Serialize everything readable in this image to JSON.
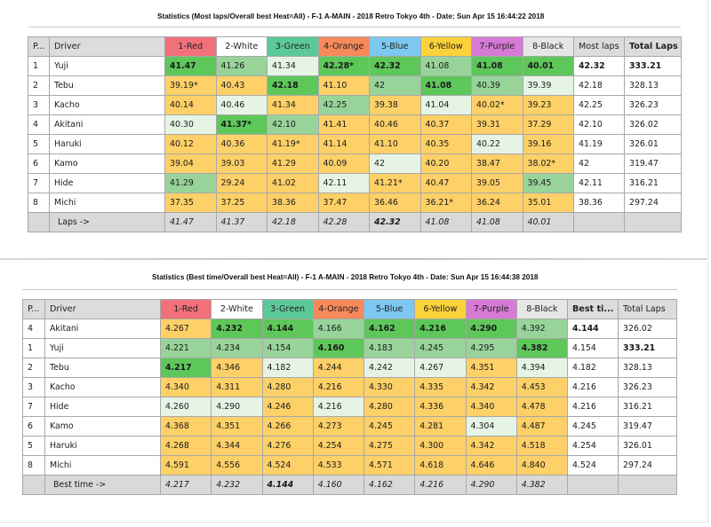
{
  "colors": {
    "best": "#5ec75a",
    "good": "#98d49a",
    "near": "#e6f4e6",
    "other": "#fdd068",
    "header_gray": "#dcdcdc",
    "lane_1_red": "#f2707a",
    "lane_2_white": "#ffffff",
    "lane_3_green": "#5cc99a",
    "lane_4_orange": "#f7895a",
    "lane_5_blue": "#7cc8f0",
    "lane_6_yellow": "#fcd23a",
    "lane_7_purple": "#d67ad6",
    "lane_8_black": "#e6e6e6"
  },
  "table1": {
    "title": "Statistics (Most laps/Overall best Heat=All) - F-1 A-MAIN - 2018 Retro Tokyo 4th - Date: Sun Apr 15 16:44:22 2018",
    "headers": {
      "pos": "P...",
      "driver": "Driver",
      "lanes": [
        "1-Red",
        "2-White",
        "3-Green",
        "4-Orange",
        "5-Blue",
        "6-Yellow",
        "7-Purple",
        "8-Black"
      ],
      "stat": "Most laps",
      "total": "Total Laps"
    },
    "rows": [
      {
        "pos": "1",
        "driver": "Yuji",
        "cells": [
          "41.47",
          "41.26",
          "41.34",
          "42.28*",
          "42.32",
          "41.08",
          "41.08",
          "40.01"
        ],
        "shade": [
          "G",
          "g",
          "l",
          "G",
          "G",
          "g",
          "G",
          "G"
        ],
        "bold": [
          true,
          false,
          false,
          true,
          true,
          false,
          true,
          true
        ],
        "stat": "42.32",
        "total": "333.21",
        "stat_bold": true,
        "total_bold": true
      },
      {
        "pos": "2",
        "driver": "Tebu",
        "cells": [
          "39.19*",
          "40.43",
          "42.18",
          "41.10",
          "42",
          "41.08",
          "40.39",
          "39.39"
        ],
        "shade": [
          "y",
          "y",
          "G",
          "y",
          "g",
          "G",
          "g",
          "l"
        ],
        "bold": [
          false,
          false,
          true,
          false,
          false,
          true,
          false,
          false
        ],
        "stat": "42.18",
        "total": "328.13",
        "stat_bold": false,
        "total_bold": false
      },
      {
        "pos": "3",
        "driver": "Kacho",
        "cells": [
          "40.14",
          "40.46",
          "41.34",
          "42.25",
          "39.38",
          "41.04",
          "40.02*",
          "39.23"
        ],
        "shade": [
          "y",
          "l",
          "y",
          "g",
          "y",
          "l",
          "y",
          "y"
        ],
        "bold": [
          false,
          false,
          false,
          false,
          false,
          false,
          false,
          false
        ],
        "stat": "42.25",
        "total": "326.23",
        "stat_bold": false,
        "total_bold": false
      },
      {
        "pos": "4",
        "driver": "Akitani",
        "cells": [
          "40.30",
          "41.37*",
          "42.10",
          "41.41",
          "40.46",
          "40.37",
          "39.31",
          "37.29"
        ],
        "shade": [
          "l",
          "G",
          "g",
          "y",
          "y",
          "y",
          "y",
          "y"
        ],
        "bold": [
          false,
          true,
          false,
          false,
          false,
          false,
          false,
          false
        ],
        "stat": "42.10",
        "total": "326.02",
        "stat_bold": false,
        "total_bold": false
      },
      {
        "pos": "5",
        "driver": "Haruki",
        "cells": [
          "40.12",
          "40.36",
          "41.19*",
          "41.14",
          "41.10",
          "40.35",
          "40.22",
          "39.16"
        ],
        "shade": [
          "y",
          "y",
          "y",
          "y",
          "y",
          "y",
          "l",
          "y"
        ],
        "bold": [
          false,
          false,
          false,
          false,
          false,
          false,
          false,
          false
        ],
        "stat": "41.19",
        "total": "326.01",
        "stat_bold": false,
        "total_bold": false
      },
      {
        "pos": "6",
        "driver": "Kamo",
        "cells": [
          "39.04",
          "39.03",
          "41.29",
          "40.09",
          "42",
          "40.20",
          "38.47",
          "38.02*"
        ],
        "shade": [
          "y",
          "y",
          "y",
          "y",
          "l",
          "y",
          "y",
          "y"
        ],
        "bold": [
          false,
          false,
          false,
          false,
          false,
          false,
          false,
          false
        ],
        "stat": "42",
        "total": "319.47",
        "stat_bold": false,
        "total_bold": false
      },
      {
        "pos": "7",
        "driver": "Hide",
        "cells": [
          "41.29",
          "29.24",
          "41.02",
          "42.11",
          "41.21*",
          "40.47",
          "39.05",
          "39.45"
        ],
        "shade": [
          "g",
          "y",
          "y",
          "l",
          "y",
          "y",
          "y",
          "g"
        ],
        "bold": [
          false,
          false,
          false,
          false,
          false,
          false,
          false,
          false
        ],
        "stat": "42.11",
        "total": "316.21",
        "stat_bold": false,
        "total_bold": false
      },
      {
        "pos": "8",
        "driver": "Michi",
        "cells": [
          "37.35",
          "37.25",
          "38.36",
          "37.47",
          "36.46",
          "36.21*",
          "36.24",
          "35.01"
        ],
        "shade": [
          "y",
          "y",
          "y",
          "y",
          "y",
          "y",
          "y",
          "y"
        ],
        "bold": [
          false,
          false,
          false,
          false,
          false,
          false,
          false,
          false
        ],
        "stat": "38.36",
        "total": "297.24",
        "stat_bold": false,
        "total_bold": false
      }
    ],
    "footer": {
      "label": "Laps ->",
      "cells": [
        "41.47",
        "41.37",
        "42.18",
        "42.28",
        "42.32",
        "41.08",
        "41.08",
        "40.01"
      ],
      "bold": [
        false,
        false,
        false,
        false,
        true,
        false,
        false,
        false
      ]
    }
  },
  "table2": {
    "title": "Statistics (Best time/Overall best Heat=All) - F-1 A-MAIN - 2018 Retro Tokyo 4th - Date: Sun Apr 15 16:44:38 2018",
    "headers": {
      "pos": "P...",
      "driver": "Driver",
      "lanes": [
        "1-Red",
        "2-White",
        "3-Green",
        "4-Orange",
        "5-Blue",
        "6-Yellow",
        "7-Purple",
        "8-Black"
      ],
      "stat": "Best ti...",
      "total": "Total Laps"
    },
    "rows": [
      {
        "pos": "4",
        "driver": "Akitani",
        "cells": [
          "4.267",
          "4.232",
          "4.144",
          "4.166",
          "4.162",
          "4.216",
          "4.290",
          "4.392"
        ],
        "shade": [
          "y",
          "G",
          "G",
          "g",
          "G",
          "G",
          "G",
          "g"
        ],
        "bold": [
          false,
          true,
          true,
          false,
          true,
          true,
          true,
          false
        ],
        "stat": "4.144",
        "total": "326.02",
        "stat_bold": true,
        "total_bold": false
      },
      {
        "pos": "1",
        "driver": "Yuji",
        "cells": [
          "4.221",
          "4.234",
          "4.154",
          "4.160",
          "4.183",
          "4.245",
          "4.295",
          "4.382"
        ],
        "shade": [
          "g",
          "g",
          "g",
          "G",
          "g",
          "g",
          "g",
          "G"
        ],
        "bold": [
          false,
          false,
          false,
          true,
          false,
          false,
          false,
          true
        ],
        "stat": "4.154",
        "total": "333.21",
        "stat_bold": false,
        "total_bold": true
      },
      {
        "pos": "2",
        "driver": "Tebu",
        "cells": [
          "4.217",
          "4.346",
          "4.182",
          "4.244",
          "4.242",
          "4.267",
          "4.351",
          "4.394"
        ],
        "shade": [
          "G",
          "y",
          "l",
          "y",
          "l",
          "l",
          "y",
          "l"
        ],
        "bold": [
          true,
          false,
          false,
          false,
          false,
          false,
          false,
          false
        ],
        "stat": "4.182",
        "total": "328.13",
        "stat_bold": false,
        "total_bold": false
      },
      {
        "pos": "3",
        "driver": "Kacho",
        "cells": [
          "4.340",
          "4.311",
          "4.280",
          "4.216",
          "4.330",
          "4.335",
          "4.342",
          "4.453"
        ],
        "shade": [
          "y",
          "y",
          "y",
          "y",
          "y",
          "y",
          "y",
          "y"
        ],
        "bold": [
          false,
          false,
          false,
          false,
          false,
          false,
          false,
          false
        ],
        "stat": "4.216",
        "total": "326.23",
        "stat_bold": false,
        "total_bold": false
      },
      {
        "pos": "7",
        "driver": "Hide",
        "cells": [
          "4.260",
          "4.290",
          "4.246",
          "4.216",
          "4.280",
          "4.336",
          "4.340",
          "4.478"
        ],
        "shade": [
          "l",
          "l",
          "y",
          "l",
          "y",
          "y",
          "y",
          "y"
        ],
        "bold": [
          false,
          false,
          false,
          false,
          false,
          false,
          false,
          false
        ],
        "stat": "4.216",
        "total": "316.21",
        "stat_bold": false,
        "total_bold": false
      },
      {
        "pos": "6",
        "driver": "Kamo",
        "cells": [
          "4.368",
          "4.351",
          "4.266",
          "4.273",
          "4.245",
          "4.281",
          "4.304",
          "4.487"
        ],
        "shade": [
          "y",
          "y",
          "y",
          "y",
          "y",
          "y",
          "l",
          "y"
        ],
        "bold": [
          false,
          false,
          false,
          false,
          false,
          false,
          false,
          false
        ],
        "stat": "4.245",
        "total": "319.47",
        "stat_bold": false,
        "total_bold": false
      },
      {
        "pos": "5",
        "driver": "Haruki",
        "cells": [
          "4.268",
          "4.344",
          "4.276",
          "4.254",
          "4.275",
          "4.300",
          "4.342",
          "4.518"
        ],
        "shade": [
          "y",
          "y",
          "y",
          "y",
          "y",
          "y",
          "y",
          "y"
        ],
        "bold": [
          false,
          false,
          false,
          false,
          false,
          false,
          false,
          false
        ],
        "stat": "4.254",
        "total": "326.01",
        "stat_bold": false,
        "total_bold": false
      },
      {
        "pos": "8",
        "driver": "Michi",
        "cells": [
          "4.591",
          "4.556",
          "4.524",
          "4.533",
          "4.571",
          "4.618",
          "4.646",
          "4.840"
        ],
        "shade": [
          "y",
          "y",
          "y",
          "y",
          "y",
          "y",
          "y",
          "y"
        ],
        "bold": [
          false,
          false,
          false,
          false,
          false,
          false,
          false,
          false
        ],
        "stat": "4.524",
        "total": "297.24",
        "stat_bold": false,
        "total_bold": false
      }
    ],
    "footer": {
      "label": "Best time ->",
      "cells": [
        "4.217",
        "4.232",
        "4.144",
        "4.160",
        "4.162",
        "4.216",
        "4.290",
        "4.382"
      ],
      "bold": [
        false,
        false,
        true,
        false,
        false,
        false,
        false,
        false
      ]
    }
  }
}
